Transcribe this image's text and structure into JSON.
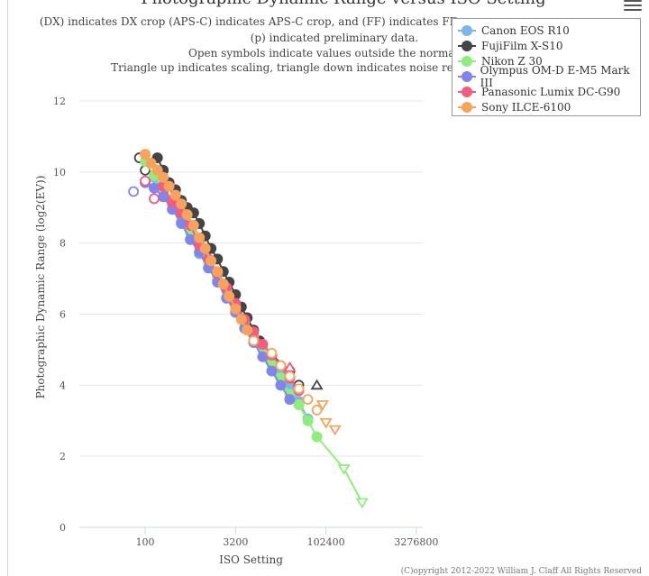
{
  "chart_data": {
    "type": "scatter",
    "title": "Photographic Dynamic Range versus ISO Setting",
    "subtitle_lines": [
      "(DX) indicates DX crop (APS-C) indicates APS-C crop, and (FF) indicates FF crop",
      "(p) indicated preliminary data.",
      "Open symbols indicate values outside the normal analog",
      "Triangle up indicates scaling, triangle down indicates noise reduction, and"
    ],
    "xlabel": "ISO Setting",
    "ylabel": "Photographic Dynamic Range (log2(EV))",
    "x_scale": "log2",
    "xlim": [
      8,
      4194304
    ],
    "ylim": [
      0,
      12
    ],
    "x_ticks": [
      100,
      3200,
      102400,
      3276800
    ],
    "x_tick_labels": [
      "100",
      "3200",
      "102400",
      "3276800"
    ],
    "y_ticks": [
      0,
      2,
      4,
      6,
      8,
      10,
      12
    ],
    "series": [
      {
        "name": "Canon EOS R10",
        "color": "#7cb5ec",
        "points": [
          {
            "x": 100,
            "y": 10.3,
            "s": "filled"
          },
          {
            "x": 141,
            "y": 9.85,
            "s": "filled"
          },
          {
            "x": 200,
            "y": 9.45,
            "s": "filled"
          },
          {
            "x": 283,
            "y": 9.1,
            "s": "filled"
          },
          {
            "x": 400,
            "y": 8.6,
            "s": "filled"
          },
          {
            "x": 566,
            "y": 8.1,
            "s": "filled"
          },
          {
            "x": 800,
            "y": 7.7,
            "s": "filled"
          },
          {
            "x": 1131,
            "y": 7.3,
            "s": "filled"
          },
          {
            "x": 1600,
            "y": 6.95,
            "s": "filled"
          },
          {
            "x": 2263,
            "y": 6.45,
            "s": "filled"
          },
          {
            "x": 3200,
            "y": 6.05,
            "s": "filled"
          },
          {
            "x": 4525,
            "y": 5.75,
            "s": "filled"
          },
          {
            "x": 6400,
            "y": 5.4,
            "s": "filled"
          },
          {
            "x": 9051,
            "y": 5.05,
            "s": "filled"
          },
          {
            "x": 12800,
            "y": 4.7,
            "s": "filled"
          },
          {
            "x": 18102,
            "y": 4.3,
            "s": "filled"
          },
          {
            "x": 25600,
            "y": 3.95,
            "s": "filled"
          },
          {
            "x": 36204,
            "y": 3.55,
            "s": "filled"
          },
          {
            "x": 51200,
            "y": 3.05,
            "s": "filled"
          }
        ]
      },
      {
        "name": "FujiFilm X-S10",
        "color": "#434348",
        "points": [
          {
            "x": 80,
            "y": 10.4,
            "s": "open-circle"
          },
          {
            "x": 100,
            "y": 10.05,
            "s": "open-circle"
          },
          {
            "x": 160,
            "y": 10.4,
            "s": "filled"
          },
          {
            "x": 200,
            "y": 10.05,
            "s": "filled"
          },
          {
            "x": 250,
            "y": 9.7,
            "s": "filled"
          },
          {
            "x": 320,
            "y": 9.5,
            "s": "filled"
          },
          {
            "x": 400,
            "y": 9.2,
            "s": "filled"
          },
          {
            "x": 500,
            "y": 9.0,
            "s": "filled"
          },
          {
            "x": 640,
            "y": 8.85,
            "s": "filled"
          },
          {
            "x": 800,
            "y": 8.55,
            "s": "filled"
          },
          {
            "x": 1000,
            "y": 8.2,
            "s": "filled"
          },
          {
            "x": 1250,
            "y": 7.85,
            "s": "filled"
          },
          {
            "x": 1600,
            "y": 7.55,
            "s": "filled"
          },
          {
            "x": 2000,
            "y": 7.2,
            "s": "filled"
          },
          {
            "x": 2500,
            "y": 6.9,
            "s": "filled"
          },
          {
            "x": 3200,
            "y": 6.55,
            "s": "filled"
          },
          {
            "x": 4000,
            "y": 6.2,
            "s": "filled"
          },
          {
            "x": 5000,
            "y": 5.9,
            "s": "filled"
          },
          {
            "x": 6400,
            "y": 5.55,
            "s": "filled"
          },
          {
            "x": 8000,
            "y": 5.25,
            "s": "filled"
          },
          {
            "x": 12800,
            "y": 4.85,
            "s": "filled"
          },
          {
            "x": 25600,
            "y": 4.4,
            "s": "filled"
          },
          {
            "x": 36204,
            "y": 4.0,
            "s": "open-circle"
          },
          {
            "x": 72408,
            "y": 4.0,
            "s": "triangle-up"
          }
        ]
      },
      {
        "name": "Nikon Z 30",
        "color": "#90ed7d",
        "points": [
          {
            "x": 100,
            "y": 10.3,
            "s": "filled"
          },
          {
            "x": 141,
            "y": 9.9,
            "s": "filled"
          },
          {
            "x": 200,
            "y": 9.55,
            "s": "filled"
          },
          {
            "x": 283,
            "y": 9.2,
            "s": "filled"
          },
          {
            "x": 400,
            "y": 8.75,
            "s": "filled"
          },
          {
            "x": 566,
            "y": 8.3,
            "s": "filled"
          },
          {
            "x": 800,
            "y": 7.9,
            "s": "filled"
          },
          {
            "x": 1131,
            "y": 7.45,
            "s": "filled"
          },
          {
            "x": 1600,
            "y": 7.05,
            "s": "filled"
          },
          {
            "x": 2263,
            "y": 6.65,
            "s": "filled"
          },
          {
            "x": 3200,
            "y": 6.2,
            "s": "filled"
          },
          {
            "x": 4525,
            "y": 5.8,
            "s": "filled"
          },
          {
            "x": 6400,
            "y": 5.4,
            "s": "filled"
          },
          {
            "x": 9051,
            "y": 5.0,
            "s": "filled"
          },
          {
            "x": 12800,
            "y": 4.6,
            "s": "filled"
          },
          {
            "x": 18102,
            "y": 4.2,
            "s": "filled"
          },
          {
            "x": 25600,
            "y": 3.75,
            "s": "filled"
          },
          {
            "x": 36204,
            "y": 3.45,
            "s": "filled"
          },
          {
            "x": 51200,
            "y": 3.0,
            "s": "filled"
          },
          {
            "x": 72408,
            "y": 2.55,
            "s": "filled"
          },
          {
            "x": 204800,
            "y": 1.65,
            "s": "triangle-down"
          },
          {
            "x": 409600,
            "y": 0.7,
            "s": "triangle-down"
          }
        ]
      },
      {
        "name": "Olympus OM-D E-M5 Mark III",
        "color": "#8085e9",
        "points": [
          {
            "x": 64,
            "y": 9.45,
            "s": "open-circle"
          },
          {
            "x": 100,
            "y": 9.7,
            "s": "filled"
          },
          {
            "x": 141,
            "y": 9.55,
            "s": "filled"
          },
          {
            "x": 200,
            "y": 9.3,
            "s": "filled"
          },
          {
            "x": 283,
            "y": 8.95,
            "s": "filled"
          },
          {
            "x": 400,
            "y": 8.55,
            "s": "filled"
          },
          {
            "x": 566,
            "y": 8.1,
            "s": "filled"
          },
          {
            "x": 800,
            "y": 7.75,
            "s": "filled"
          },
          {
            "x": 1131,
            "y": 7.3,
            "s": "filled"
          },
          {
            "x": 1600,
            "y": 6.9,
            "s": "filled"
          },
          {
            "x": 2263,
            "y": 6.45,
            "s": "filled"
          },
          {
            "x": 3200,
            "y": 6.05,
            "s": "filled"
          },
          {
            "x": 4525,
            "y": 5.6,
            "s": "filled"
          },
          {
            "x": 6400,
            "y": 5.2,
            "s": "filled"
          },
          {
            "x": 9051,
            "y": 4.8,
            "s": "filled"
          },
          {
            "x": 12800,
            "y": 4.4,
            "s": "filled"
          },
          {
            "x": 18102,
            "y": 4.0,
            "s": "filled"
          },
          {
            "x": 25600,
            "y": 3.6,
            "s": "filled"
          }
        ]
      },
      {
        "name": "Panasonic Lumix DC-G90",
        "color": "#f15c80",
        "points": [
          {
            "x": 100,
            "y": 9.75,
            "s": "open-circle"
          },
          {
            "x": 141,
            "y": 9.25,
            "s": "open-circle"
          },
          {
            "x": 200,
            "y": 9.6,
            "s": "filled"
          },
          {
            "x": 283,
            "y": 9.15,
            "s": "filled"
          },
          {
            "x": 400,
            "y": 8.85,
            "s": "filled"
          },
          {
            "x": 566,
            "y": 8.5,
            "s": "filled"
          },
          {
            "x": 800,
            "y": 7.95,
            "s": "filled"
          },
          {
            "x": 1131,
            "y": 7.55,
            "s": "filled"
          },
          {
            "x": 1600,
            "y": 7.15,
            "s": "filled"
          },
          {
            "x": 2263,
            "y": 6.75,
            "s": "filled"
          },
          {
            "x": 3200,
            "y": 6.3,
            "s": "filled"
          },
          {
            "x": 4525,
            "y": 5.85,
            "s": "filled"
          },
          {
            "x": 6400,
            "y": 5.5,
            "s": "filled"
          },
          {
            "x": 9051,
            "y": 5.15,
            "s": "filled"
          },
          {
            "x": 12800,
            "y": 4.85,
            "s": "filled"
          },
          {
            "x": 18102,
            "y": 4.55,
            "s": "filled"
          },
          {
            "x": 25600,
            "y": 4.2,
            "s": "filled"
          },
          {
            "x": 36204,
            "y": 3.85,
            "s": "filled"
          },
          {
            "x": 25600,
            "y": 4.5,
            "s": "triangle-up"
          }
        ]
      },
      {
        "name": "Sony ILCE-6100",
        "color": "#f7a35c",
        "points": [
          {
            "x": 100,
            "y": 10.5,
            "s": "filled"
          },
          {
            "x": 125,
            "y": 10.25,
            "s": "filled"
          },
          {
            "x": 160,
            "y": 10.05,
            "s": "filled"
          },
          {
            "x": 200,
            "y": 9.85,
            "s": "filled"
          },
          {
            "x": 250,
            "y": 9.6,
            "s": "filled"
          },
          {
            "x": 320,
            "y": 9.35,
            "s": "filled"
          },
          {
            "x": 400,
            "y": 9.1,
            "s": "filled"
          },
          {
            "x": 500,
            "y": 8.8,
            "s": "filled"
          },
          {
            "x": 640,
            "y": 8.5,
            "s": "filled"
          },
          {
            "x": 800,
            "y": 8.15,
            "s": "filled"
          },
          {
            "x": 1000,
            "y": 7.85,
            "s": "filled"
          },
          {
            "x": 1250,
            "y": 7.5,
            "s": "filled"
          },
          {
            "x": 1600,
            "y": 7.2,
            "s": "filled"
          },
          {
            "x": 2000,
            "y": 6.85,
            "s": "filled"
          },
          {
            "x": 2500,
            "y": 6.5,
            "s": "filled"
          },
          {
            "x": 3200,
            "y": 6.15,
            "s": "filled"
          },
          {
            "x": 4000,
            "y": 5.85,
            "s": "filled"
          },
          {
            "x": 5000,
            "y": 5.55,
            "s": "filled"
          },
          {
            "x": 6400,
            "y": 5.25,
            "s": "open-circle"
          },
          {
            "x": 12800,
            "y": 4.9,
            "s": "open-circle"
          },
          {
            "x": 18102,
            "y": 4.55,
            "s": "open-circle"
          },
          {
            "x": 25600,
            "y": 4.25,
            "s": "open-circle"
          },
          {
            "x": 36204,
            "y": 3.9,
            "s": "open-circle"
          },
          {
            "x": 51200,
            "y": 3.6,
            "s": "open-circle"
          },
          {
            "x": 72408,
            "y": 3.3,
            "s": "open-circle"
          },
          {
            "x": 102400,
            "y": 2.95,
            "s": "triangle-down"
          },
          {
            "x": 145000,
            "y": 2.75,
            "s": "triangle-down"
          },
          {
            "x": 90000,
            "y": 3.45,
            "s": "triangle-down"
          }
        ]
      }
    ],
    "legend_position": "top-right"
  },
  "footer": "(C)opyright 2012-2022 William J. Claff All Rights Reserved"
}
